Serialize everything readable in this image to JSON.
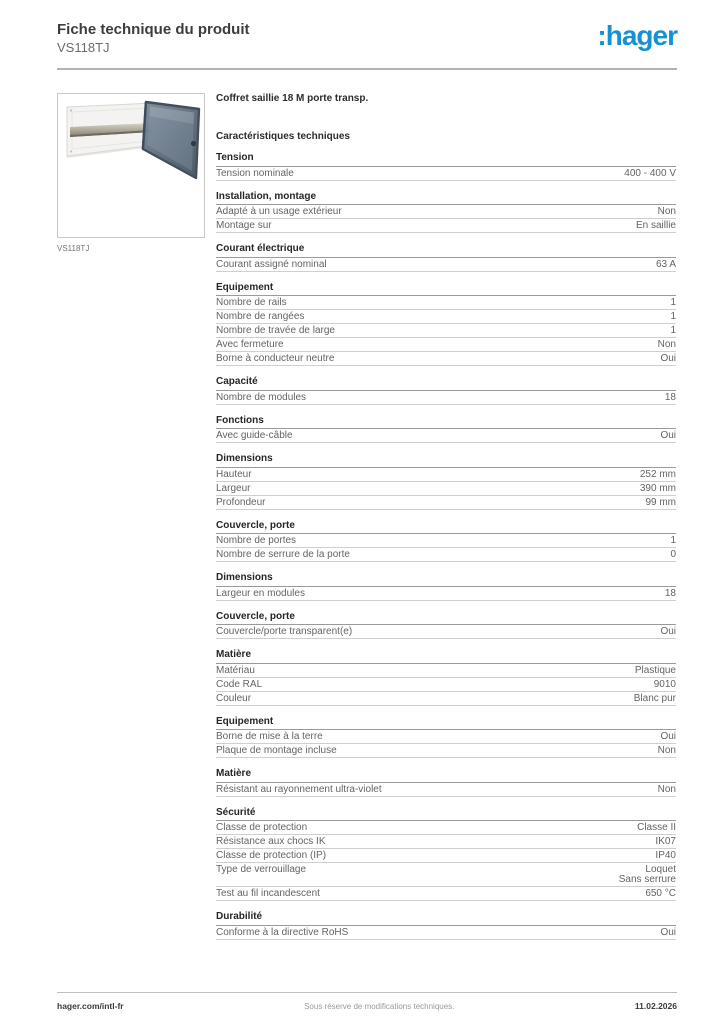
{
  "header": {
    "title": "Fiche technique du produit",
    "subtitle": "VS118TJ",
    "logo_text": ":hager",
    "logo_color": "#1692d3"
  },
  "product": {
    "description": "Coffret saillie 18 M porte transp.",
    "characteristics_heading": "Caractéristiques techniques",
    "image_caption": "VS118TJ"
  },
  "sections": [
    {
      "title": "Tension",
      "rows": [
        {
          "label": "Tension nominale",
          "value": "400 - 400 V"
        }
      ]
    },
    {
      "title": "Installation, montage",
      "rows": [
        {
          "label": "Adapté à un usage extérieur",
          "value": "Non"
        },
        {
          "label": "Montage sur",
          "value": "En saillie"
        }
      ]
    },
    {
      "title": "Courant électrique",
      "rows": [
        {
          "label": "Courant assigné nominal",
          "value": "63 A"
        }
      ]
    },
    {
      "title": "Equipement",
      "rows": [
        {
          "label": "Nombre de rails",
          "value": "1"
        },
        {
          "label": "Nombre de rangées",
          "value": "1"
        },
        {
          "label": "Nombre de travée de large",
          "value": "1"
        },
        {
          "label": "Avec fermeture",
          "value": "Non"
        },
        {
          "label": "Borne à conducteur neutre",
          "value": "Oui"
        }
      ]
    },
    {
      "title": "Capacité",
      "rows": [
        {
          "label": "Nombre de modules",
          "value": "18"
        }
      ]
    },
    {
      "title": "Fonctions",
      "rows": [
        {
          "label": "Avec guide-câble",
          "value": "Oui"
        }
      ]
    },
    {
      "title": "Dimensions",
      "rows": [
        {
          "label": "Hauteur",
          "value": "252 mm"
        },
        {
          "label": "Largeur",
          "value": "390 mm"
        },
        {
          "label": "Profondeur",
          "value": "99 mm"
        }
      ]
    },
    {
      "title": "Couvercle, porte",
      "rows": [
        {
          "label": "Nombre de portes",
          "value": "1"
        },
        {
          "label": "Nombre de serrure de la porte",
          "value": "0"
        }
      ]
    },
    {
      "title": "Dimensions",
      "rows": [
        {
          "label": "Largeur en modules",
          "value": "18"
        }
      ]
    },
    {
      "title": "Couvercle, porte",
      "rows": [
        {
          "label": "Couvercle/porte transparent(e)",
          "value": "Oui"
        }
      ]
    },
    {
      "title": "Matière",
      "rows": [
        {
          "label": "Matériau",
          "value": "Plastique"
        },
        {
          "label": "Code RAL",
          "value": "9010"
        },
        {
          "label": "Couleur",
          "value": "Blanc pur"
        }
      ]
    },
    {
      "title": "Equipement",
      "rows": [
        {
          "label": "Borne de mise à la terre",
          "value": "Oui"
        },
        {
          "label": "Plaque de montage incluse",
          "value": "Non"
        }
      ]
    },
    {
      "title": "Matière",
      "rows": [
        {
          "label": "Résistant au rayonnement ultra-violet",
          "value": "Non"
        }
      ]
    },
    {
      "title": "Sécurité",
      "rows": [
        {
          "label": "Classe de protection",
          "value": "Classe II"
        },
        {
          "label": "Résistance aux chocs IK",
          "value": "IK07"
        },
        {
          "label": "Classe de protection (IP)",
          "value": "IP40"
        },
        {
          "label": "Type de verrouillage",
          "value": "Loquet\nSans serrure"
        },
        {
          "label": "Test au fil incandescent",
          "value": "650 °C"
        }
      ]
    },
    {
      "title": "Durabilité",
      "rows": [
        {
          "label": "Conforme à la directive RoHS",
          "value": "Oui"
        }
      ]
    }
  ],
  "footer": {
    "left": "hager.com/intl-fr",
    "center": "Sous réserve de modifications techniques.",
    "right": "11.02.2026"
  }
}
